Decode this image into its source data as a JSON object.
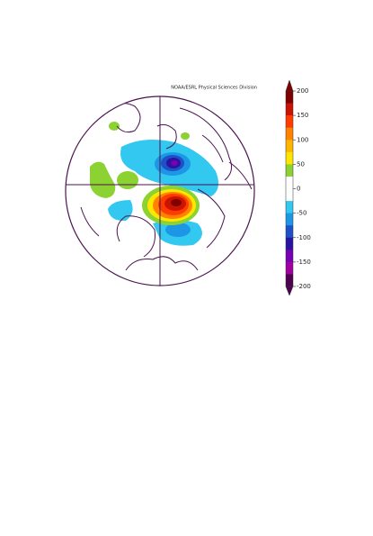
{
  "map": {
    "credit": "NOAA/ESRL Physical Sciences Division",
    "colorbar": {
      "limits": [
        -200,
        200
      ],
      "ticks": [
        200,
        150,
        100,
        50,
        0,
        -50,
        -100,
        -150,
        -200
      ],
      "colors": [
        "#800000",
        "#c81400",
        "#ff3c00",
        "#ff8200",
        "#ffb400",
        "#ffe600",
        "#8cd232",
        "#ffffff",
        "#ffffff",
        "#32c8f0",
        "#1e96e6",
        "#1e50c8",
        "#2814a0",
        "#7800b4",
        "#a000a0",
        "#500050"
      ]
    }
  }
}
